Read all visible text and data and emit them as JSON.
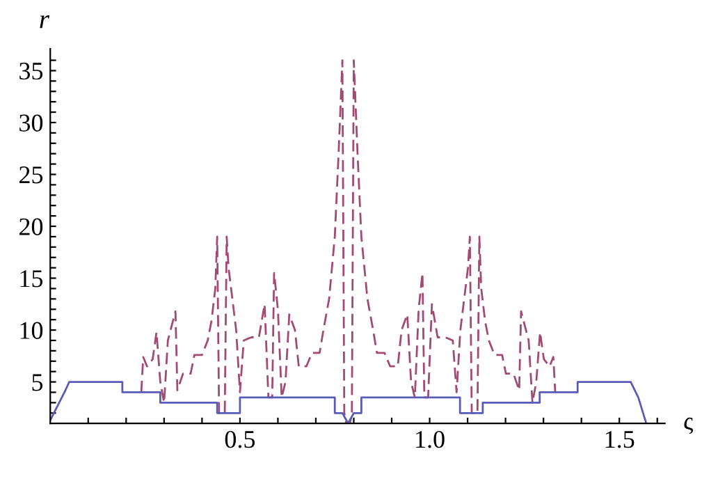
{
  "chart_data": {
    "type": "line",
    "xlabel": "ς",
    "ylabel": "r",
    "xlim": [
      0,
      1.62
    ],
    "ylim": [
      1.0,
      37.1
    ],
    "xticks": [
      {
        "value": 0.1,
        "label": null
      },
      {
        "value": 0.2,
        "label": null
      },
      {
        "value": 0.3,
        "label": null
      },
      {
        "value": 0.4,
        "label": null
      },
      0.5,
      {
        "value": 0.6,
        "label": null
      },
      {
        "value": 0.7,
        "label": null
      },
      {
        "value": 0.8,
        "label": null
      },
      {
        "value": 0.9,
        "label": null
      },
      {
        "value": 1.0,
        "label": "1.0"
      },
      {
        "value": 1.1,
        "label": null
      },
      {
        "value": 1.2,
        "label": null
      },
      {
        "value": 1.3,
        "label": null
      },
      {
        "value": 1.4,
        "label": null
      },
      1.5,
      {
        "value": 1.6,
        "label": null
      }
    ],
    "yticks": [
      {
        "value": 2,
        "label": null
      },
      {
        "value": 3,
        "label": null
      },
      {
        "value": 4,
        "label": null
      },
      5,
      {
        "value": 6,
        "label": null
      },
      {
        "value": 7,
        "label": null
      },
      {
        "value": 8,
        "label": null
      },
      {
        "value": 9,
        "label": null
      },
      10,
      {
        "value": 11,
        "label": null
      },
      {
        "value": 12,
        "label": null
      },
      {
        "value": 13,
        "label": null
      },
      {
        "value": 14,
        "label": null
      },
      15,
      {
        "value": 16,
        "label": null
      },
      {
        "value": 17,
        "label": null
      },
      {
        "value": 18,
        "label": null
      },
      {
        "value": 19,
        "label": null
      },
      20,
      {
        "value": 21,
        "label": null
      },
      {
        "value": 22,
        "label": null
      },
      {
        "value": 23,
        "label": null
      },
      {
        "value": 24,
        "label": null
      },
      25,
      {
        "value": 26,
        "label": null
      },
      {
        "value": 27,
        "label": null
      },
      {
        "value": 28,
        "label": null
      },
      {
        "value": 29,
        "label": null
      },
      30,
      {
        "value": 31,
        "label": null
      },
      {
        "value": 32,
        "label": null
      },
      {
        "value": 33,
        "label": null
      },
      {
        "value": 34,
        "label": null
      },
      35,
      {
        "value": 36,
        "label": null
      }
    ],
    "grid": false,
    "legend": false,
    "marker": "none",
    "series": [
      {
        "color": "#a34a73",
        "line_style": "dashed",
        "x": [
          0.24,
          0.245,
          0.255,
          0.27,
          0.28,
          0.29,
          0.3,
          0.31,
          0.33,
          0.335,
          0.35,
          0.37,
          0.38,
          0.4,
          0.415,
          0.425,
          0.435,
          0.44,
          0.445,
          0.46,
          0.465,
          0.47,
          0.48,
          0.49,
          0.5,
          0.51,
          0.53,
          0.55,
          0.565,
          0.575,
          0.585,
          0.59,
          0.6,
          0.61,
          0.62,
          0.63,
          0.645,
          0.655,
          0.675,
          0.69,
          0.71,
          0.72,
          0.735,
          0.75,
          0.76,
          0.77,
          0.775,
          0.78,
          0.79,
          0.795,
          0.8,
          0.81,
          0.82,
          0.836,
          0.851,
          0.861,
          0.881,
          0.896,
          0.916,
          0.926,
          0.941,
          0.951,
          0.961,
          0.971,
          0.981,
          0.986,
          0.996,
          1.006,
          1.021,
          1.041,
          1.061,
          1.071,
          1.081,
          1.091,
          1.101,
          1.106,
          1.111,
          1.126,
          1.131,
          1.136,
          1.146,
          1.156,
          1.171,
          1.191,
          1.201,
          1.221,
          1.236,
          1.241,
          1.261,
          1.271,
          1.281,
          1.291,
          1.301,
          1.316,
          1.326,
          1.331
        ],
        "values": [
          4,
          7.4,
          6.5,
          7.2,
          9.8,
          5,
          3,
          9,
          11.8,
          4.2,
          5.8,
          5.8,
          7.6,
          7.6,
          9,
          10.9,
          14,
          19,
          2,
          2,
          19,
          16,
          13,
          10,
          4,
          9,
          9.3,
          9.3,
          12.5,
          3.5,
          3.5,
          15.5,
          12,
          3.5,
          5,
          11.5,
          10,
          6.5,
          6.5,
          7.8,
          7.8,
          10,
          13,
          19,
          27,
          36,
          2,
          1,
          1,
          2,
          36,
          27,
          19,
          13,
          10,
          7.8,
          7.8,
          6.5,
          6.5,
          10,
          11.5,
          5,
          3.5,
          12,
          15.5,
          3.5,
          3.5,
          12.5,
          9.3,
          9.3,
          9,
          4,
          10,
          13,
          16,
          19,
          2,
          2,
          19,
          14,
          10.9,
          9,
          7.6,
          7.6,
          5.8,
          5.8,
          4.2,
          11.8,
          9,
          3,
          5,
          9.8,
          7.2,
          6.5,
          7.4,
          4
        ]
      },
      {
        "color": "#5a5ab8",
        "line_style": "solid",
        "x": [
          0,
          0.04,
          0.05,
          0.19,
          0.19,
          0.29,
          0.29,
          0.44,
          0.44,
          0.5,
          0.5,
          0.75,
          0.75,
          0.77,
          0.785,
          0.8,
          0.82,
          0.82,
          1.08,
          1.08,
          1.14,
          1.14,
          1.29,
          1.29,
          1.39,
          1.39,
          1.53,
          1.55,
          1.571
        ],
        "values": [
          1.3,
          4.2,
          5,
          5,
          4,
          4,
          3,
          3,
          2,
          2,
          3.5,
          3.5,
          2,
          2,
          1.0,
          2,
          2,
          3.5,
          3.5,
          2,
          2,
          3,
          3,
          4,
          4,
          5,
          5,
          3.5,
          1.0
        ]
      }
    ]
  }
}
